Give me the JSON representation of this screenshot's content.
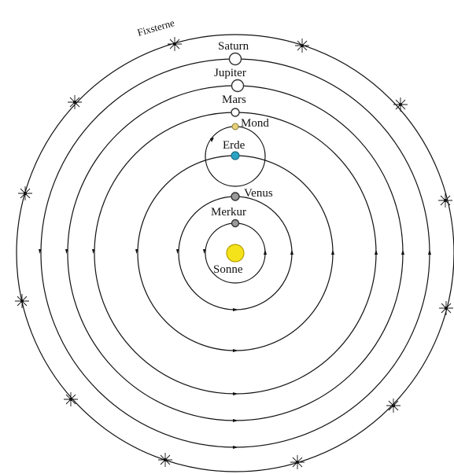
{
  "colors": {
    "line": "#111111",
    "sun": "#f4e21a",
    "earth": "#2aa4c4",
    "moon": "#e7d27a",
    "planet_fill": "#ffffff",
    "planet_grey": "#9a9a9a"
  },
  "labels": {
    "fixed_stars": "Fixsterne",
    "saturn": "Saturn",
    "jupiter": "Jupiter",
    "mars": "Mars",
    "moon": "Mond",
    "earth": "Erde",
    "venus": "Venus",
    "mercury": "Merkur",
    "sun": "Sonne"
  },
  "icons": {
    "sun": "sun-icon",
    "earth": "earth-icon",
    "moon": "moon-icon",
    "star": "star-icon"
  }
}
